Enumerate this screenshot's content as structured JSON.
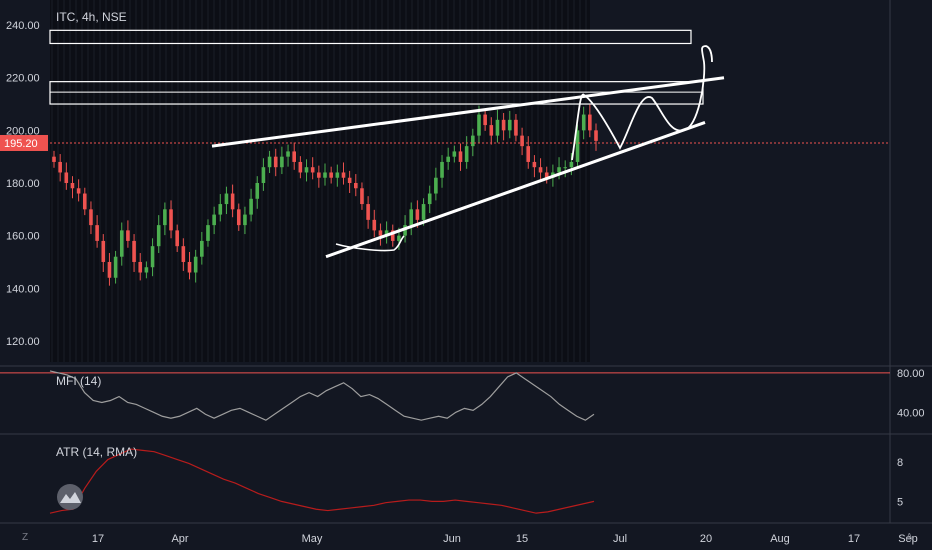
{
  "chart_data": [
    {
      "type": "candlestick",
      "title": "ITC, 4h, NSE",
      "ylim": [
        112,
        248
      ],
      "y_ticks": [
        "120.00",
        "140.00",
        "160.00",
        "180.00",
        "200.00",
        "220.00",
        "240.00"
      ],
      "last_price": 195.2,
      "last_price_label": "195.20",
      "x_labels": [
        "17",
        "Apr",
        "May",
        "Jun",
        "15",
        "Jul",
        "20",
        "Aug",
        "17",
        "Sep"
      ],
      "candles_close": [
        188,
        184,
        180,
        178,
        176,
        170,
        164,
        158,
        150,
        144,
        152,
        162,
        158,
        150,
        146,
        148,
        156,
        164,
        170,
        162,
        156,
        150,
        146,
        152,
        158,
        164,
        168,
        172,
        176,
        170,
        164,
        168,
        174,
        180,
        186,
        190,
        186,
        190,
        192,
        188,
        184,
        186,
        184,
        182,
        184,
        182,
        184,
        182,
        180,
        178,
        172,
        166,
        162,
        160,
        162,
        158,
        160,
        164,
        170,
        166,
        172,
        176,
        182,
        188,
        190,
        192,
        188,
        194,
        198,
        206,
        202,
        198,
        204,
        200,
        204,
        198,
        194,
        188,
        186,
        184,
        182,
        184,
        186,
        186,
        188,
        200,
        206,
        200,
        196
      ],
      "annotations": {
        "zones": [
          [
            233,
            238
          ],
          [
            210,
            218.5
          ]
        ],
        "trendlines": [
          {
            "from": [
              "Apr",
              194
            ],
            "to": [
              "Jul+",
              220
            ]
          },
          {
            "from": [
              "May",
              153
            ],
            "to": [
              "Jul+",
              203
            ]
          }
        ]
      }
    },
    {
      "type": "line",
      "title": "MFI (14)",
      "ylim": [
        20,
        85
      ],
      "y_ticks": [
        "80.00",
        "40.00"
      ],
      "values": [
        82,
        80,
        78,
        74,
        60,
        52,
        50,
        52,
        56,
        50,
        48,
        44,
        40,
        36,
        34,
        36,
        40,
        44,
        38,
        34,
        38,
        42,
        44,
        40,
        36,
        32,
        38,
        44,
        50,
        56,
        60,
        56,
        62,
        66,
        70,
        64,
        56,
        58,
        54,
        48,
        42,
        36,
        34,
        32,
        34,
        36,
        34,
        40,
        44,
        42,
        48,
        56,
        66,
        76,
        80,
        74,
        68,
        62,
        56,
        48,
        42,
        36,
        32,
        38
      ]
    },
    {
      "type": "line",
      "title": "ATR (14, RMA)",
      "ylim": [
        3.5,
        10
      ],
      "y_ticks": [
        "8",
        "5"
      ],
      "values": [
        4.1,
        4.3,
        4.4,
        6.0,
        7.3,
        8.2,
        8.6,
        9.0,
        8.9,
        8.8,
        8.5,
        8.2,
        7.9,
        7.5,
        7.1,
        6.7,
        6.4,
        6.0,
        5.6,
        5.3,
        5.0,
        4.8,
        4.6,
        4.4,
        4.3,
        4.4,
        4.5,
        4.6,
        4.7,
        4.9,
        5.0,
        5.1,
        5.1,
        5.0,
        5.0,
        5.1,
        5.0,
        4.9,
        4.8,
        4.7,
        4.5,
        4.3,
        4.1,
        4.2,
        4.4,
        4.6,
        4.8,
        5.0
      ]
    }
  ]
}
